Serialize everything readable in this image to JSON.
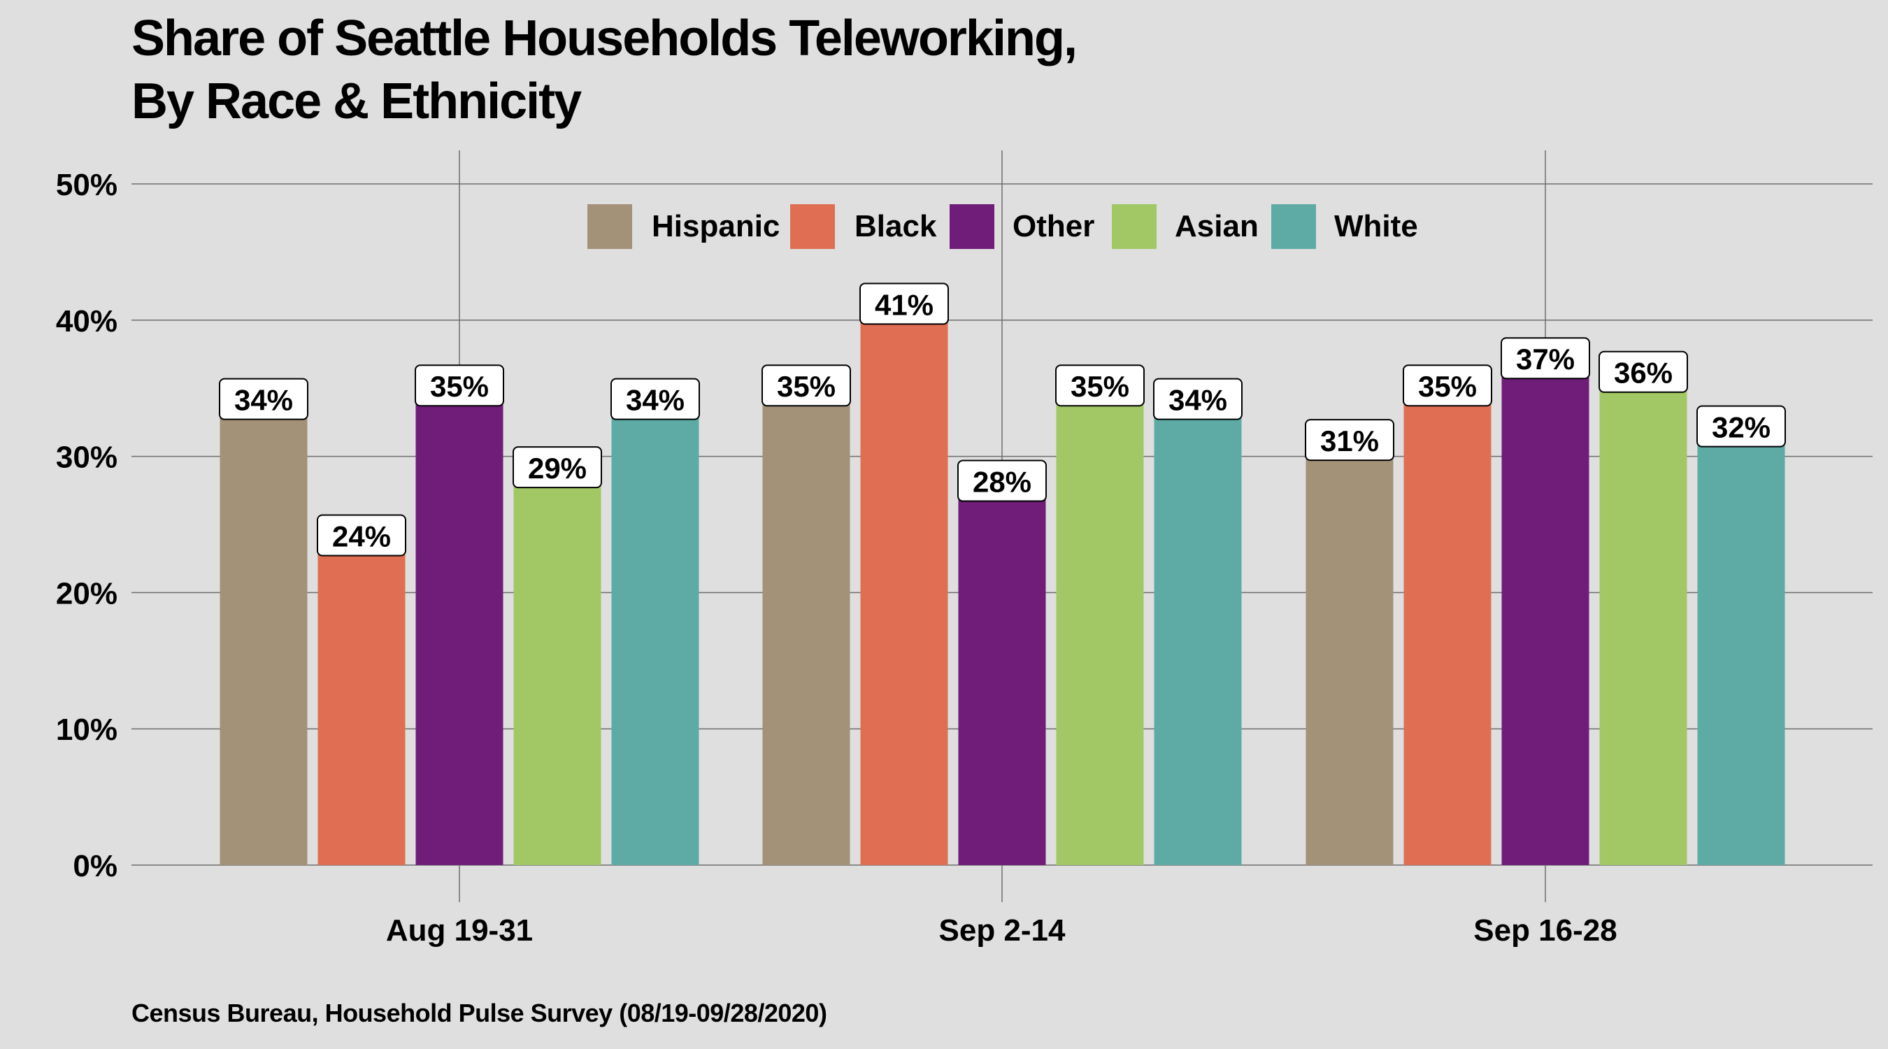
{
  "chart_data": {
    "type": "bar",
    "title_line1": "Share of Seattle Households Teleworking,",
    "title_line2": "By Race & Ethnicity",
    "caption": "Census Bureau, Household Pulse Survey (08/19-09/28/2020)",
    "xlabel": "",
    "ylabel": "",
    "categories": [
      "Aug 19-31",
      "Sep 2-14",
      "Sep 16-28"
    ],
    "series": [
      {
        "name": "Hispanic",
        "color": "#a39178",
        "values": [
          34,
          35,
          31
        ]
      },
      {
        "name": "Black",
        "color": "#e06e52",
        "values": [
          24,
          41,
          35
        ]
      },
      {
        "name": "Other",
        "color": "#6f1d78",
        "values": [
          35,
          28,
          37
        ]
      },
      {
        "name": "Asian",
        "color": "#a2c865",
        "values": [
          29,
          35,
          36
        ]
      },
      {
        "name": "White",
        "color": "#5eaba6",
        "values": [
          34,
          34,
          32
        ]
      }
    ],
    "data_labels": [
      [
        "34%",
        "35%",
        "31%"
      ],
      [
        "24%",
        "41%",
        "35%"
      ],
      [
        "35%",
        "28%",
        "37%"
      ],
      [
        "29%",
        "35%",
        "36%"
      ],
      [
        "34%",
        "34%",
        "32%"
      ]
    ],
    "ylim": [
      0,
      50
    ],
    "yticks": [
      0,
      10,
      20,
      30,
      40,
      50
    ],
    "ytick_labels": [
      "0%",
      "10%",
      "20%",
      "30%",
      "40%",
      "50%"
    ],
    "grid": true,
    "legend_position": "top-center",
    "background": "#dfdfdf"
  }
}
